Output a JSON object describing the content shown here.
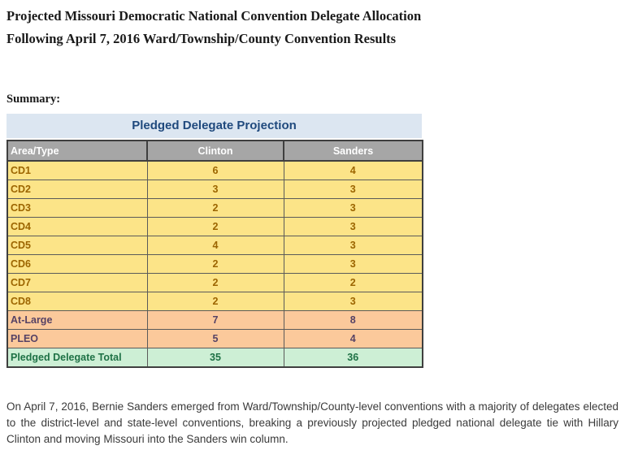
{
  "page": {
    "title_line1": "Projected Missouri Democratic National Convention Delegate Allocation",
    "title_line2": "Following April 7, 2016 Ward/Township/County Convention Results",
    "summary_label": "Summary:",
    "footer_paragraph": "On April 7, 2016, Bernie Sanders emerged from Ward/Township/County-level conventions with a majority of delegates elected to the district-level and state-level conventions, breaking a previously projected pledged national delegate tie with Hillary Clinton and moving Missouri into the Sanders win column."
  },
  "table": {
    "title": "Pledged Delegate Projection",
    "columns": [
      "Area/Type",
      "Clinton",
      "Sanders"
    ],
    "rows": [
      {
        "area": "CD1",
        "clinton": "6",
        "sanders": "4",
        "group": "cd"
      },
      {
        "area": "CD2",
        "clinton": "3",
        "sanders": "3",
        "group": "cd"
      },
      {
        "area": "CD3",
        "clinton": "2",
        "sanders": "3",
        "group": "cd"
      },
      {
        "area": "CD4",
        "clinton": "2",
        "sanders": "3",
        "group": "cd"
      },
      {
        "area": "CD5",
        "clinton": "4",
        "sanders": "3",
        "group": "cd"
      },
      {
        "area": "CD6",
        "clinton": "2",
        "sanders": "3",
        "group": "cd"
      },
      {
        "area": "CD7",
        "clinton": "2",
        "sanders": "2",
        "group": "cd"
      },
      {
        "area": "CD8",
        "clinton": "2",
        "sanders": "3",
        "group": "cd"
      },
      {
        "area": "At-Large",
        "clinton": "7",
        "sanders": "8",
        "group": "atlarge"
      },
      {
        "area": "PLEO",
        "clinton": "5",
        "sanders": "4",
        "group": "atlarge"
      },
      {
        "area": "Pledged Delegate Total",
        "clinton": "35",
        "sanders": "36",
        "group": "total"
      }
    ]
  },
  "chart_data": {
    "type": "table",
    "title": "Pledged Delegate Projection",
    "columns": [
      "Area/Type",
      "Clinton",
      "Sanders"
    ],
    "rows": [
      [
        "CD1",
        6,
        4
      ],
      [
        "CD2",
        3,
        3
      ],
      [
        "CD3",
        2,
        3
      ],
      [
        "CD4",
        2,
        3
      ],
      [
        "CD5",
        4,
        3
      ],
      [
        "CD6",
        2,
        3
      ],
      [
        "CD7",
        2,
        2
      ],
      [
        "CD8",
        2,
        3
      ],
      [
        "At-Large",
        7,
        8
      ],
      [
        "PLEO",
        5,
        4
      ],
      [
        "Pledged Delegate Total",
        35,
        36
      ]
    ]
  },
  "colors": {
    "band-bg": "#dce6f1",
    "band-text": "#1f497d",
    "header-bg": "#a6a6a6",
    "header-text": "#ffffff",
    "cd-bg": "#fce488",
    "cd-text": "#9c6500",
    "special-bg": "#fbc99b",
    "special-text": "#564265",
    "total-bg": "#cdefd5",
    "total-text": "#1e7145",
    "grid": "#5a5a5a",
    "grid-strong": "#3f3f3f",
    "body-text": "#3a3a3a"
  }
}
